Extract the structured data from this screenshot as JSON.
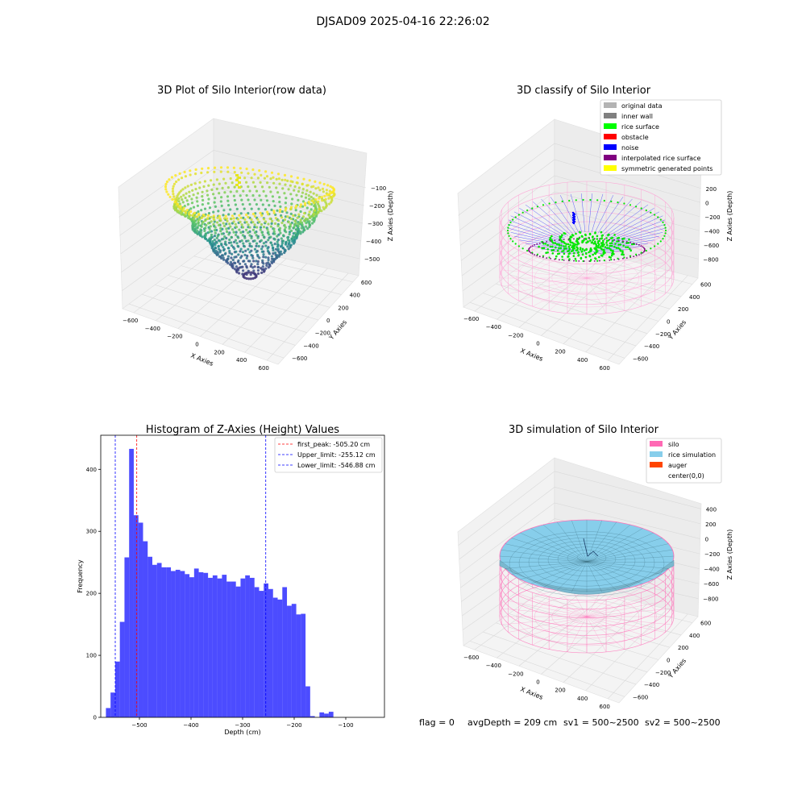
{
  "figure": {
    "suptitle": "DJSAD09 2025-04-16 22:26:02",
    "status_line": {
      "flag": "flag = 0",
      "avg_depth": "avgDepth = 209 cm",
      "sv1": "sv1 = 500~2500",
      "sv2": "sv2 = 500~2500"
    }
  },
  "chart_data": [
    {
      "type": "scatter3d",
      "title": "3D Plot of Silo Interior(row data)",
      "xlabel": "X Axies",
      "ylabel": "Y Axies",
      "zlabel": "Z Axies (Depth)",
      "x_ticks": [
        "−600",
        "−400",
        "−200",
        "0",
        "200",
        "400",
        "600"
      ],
      "y_ticks": [
        "−600",
        "−400",
        "−200",
        "0",
        "200",
        "400",
        "600"
      ],
      "z_ticks": [
        "−100",
        "−200",
        "−300",
        "−400",
        "−500"
      ],
      "xlim": [
        -650,
        650
      ],
      "ylim": [
        -650,
        650
      ],
      "zlim": [
        -560,
        -40
      ],
      "colormap": "viridis",
      "grid": true
    },
    {
      "type": "scatter3d",
      "title": "3D classify of Silo Interior",
      "xlabel": "X Axies",
      "ylabel": "Y Axies",
      "zlabel": "Z Axies (Depth)",
      "x_ticks": [
        "−600",
        "−400",
        "−200",
        "0",
        "200",
        "400",
        "600"
      ],
      "y_ticks": [
        "−600",
        "−400",
        "−200",
        "0",
        "200",
        "400",
        "600"
      ],
      "z_ticks": [
        "200",
        "0",
        "−200",
        "−400",
        "−600",
        "−800"
      ],
      "xlim": [
        -650,
        650
      ],
      "ylim": [
        -650,
        650
      ],
      "zlim": [
        -900,
        300
      ],
      "legend_position": "top-right",
      "legend": [
        {
          "label": "original data",
          "color": "#b3b3b3"
        },
        {
          "label": "inner wall",
          "color": "#808080"
        },
        {
          "label": "rice surface",
          "color": "#00ff00"
        },
        {
          "label": "obstacle",
          "color": "#ff0000"
        },
        {
          "label": "noise",
          "color": "#0000ff"
        },
        {
          "label": "interpolated rice surface",
          "color": "#800080"
        },
        {
          "label": "symmetric generated points",
          "color": "#ffff00"
        }
      ],
      "grid": true
    },
    {
      "type": "bar",
      "title": "Histogram of Z-Axies (Height) Values",
      "xlabel": "Depth (cm)",
      "ylabel": "Frequency",
      "bar_color": "#0000ff",
      "bin_start": -565,
      "bin_width": 9,
      "values": [
        15,
        40,
        90,
        154,
        258,
        433,
        326,
        314,
        284,
        259,
        246,
        249,
        242,
        242,
        236,
        238,
        236,
        231,
        226,
        240,
        234,
        233,
        225,
        229,
        224,
        230,
        219,
        219,
        211,
        224,
        229,
        225,
        210,
        204,
        216,
        207,
        193,
        190,
        210,
        180,
        183,
        166,
        167,
        50,
        2,
        0,
        8,
        6,
        9
      ],
      "xlim": [
        -575,
        -25
      ],
      "ylim": [
        0,
        455
      ],
      "x_ticks": [
        -500,
        -400,
        -300,
        -200,
        -100
      ],
      "x_tick_labels": [
        "−500",
        "−400",
        "−300",
        "−200",
        "−100"
      ],
      "y_ticks": [
        0,
        100,
        200,
        300,
        400
      ],
      "y_tick_labels": [
        "0",
        "100",
        "200",
        "300",
        "400"
      ],
      "vlines": [
        {
          "x": -505.2,
          "color": "#ff0000",
          "label": "first_peak: -505.20 cm"
        },
        {
          "x": -255.12,
          "color": "#0000ff",
          "label": "Upper_limit: -255.12 cm"
        },
        {
          "x": -546.88,
          "color": "#0000ff",
          "label": "Lower_limit: -546.88 cm"
        }
      ],
      "legend_position": "top-right",
      "grid": false
    },
    {
      "type": "surface3d",
      "title": "3D simulation of Silo Interior",
      "xlabel": "X Axies",
      "ylabel": "Y Axies",
      "zlabel": "Z Axies (Depth)",
      "x_ticks": [
        "−600",
        "−400",
        "−200",
        "0",
        "200",
        "400",
        "600"
      ],
      "y_ticks": [
        "−600",
        "−400",
        "−200",
        "0",
        "200",
        "400",
        "600"
      ],
      "z_ticks": [
        "400",
        "200",
        "0",
        "−200",
        "−400",
        "−600",
        "−800"
      ],
      "xlim": [
        -650,
        650
      ],
      "ylim": [
        -650,
        650
      ],
      "zlim": [
        -900,
        500
      ],
      "legend_position": "top-right",
      "legend": [
        {
          "label": "silo",
          "color": "#ff69b4"
        },
        {
          "label": "rice simulation",
          "color": "#87ceeb"
        },
        {
          "label": "auger",
          "color": "#ff4500"
        },
        {
          "label": "center(0,0)",
          "color": "none"
        }
      ],
      "grid": true
    }
  ]
}
